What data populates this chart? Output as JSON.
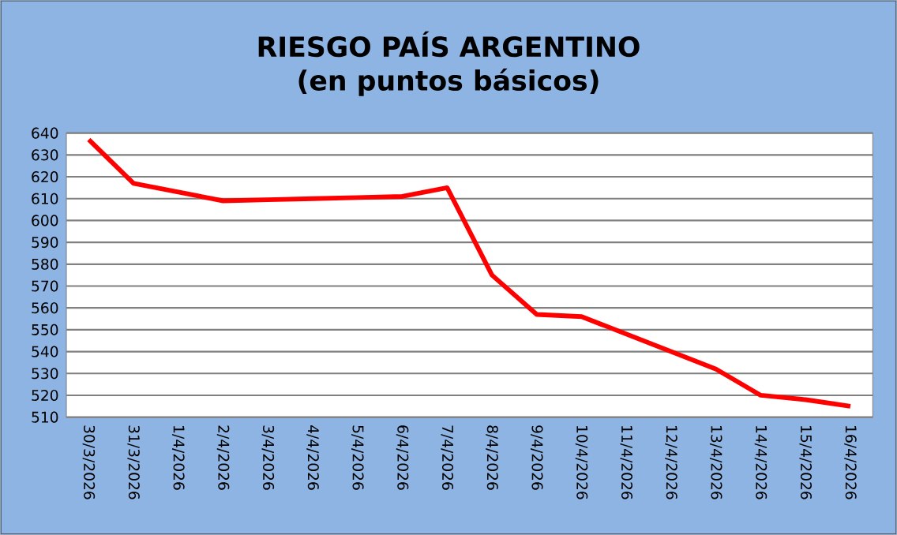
{
  "chart_data": {
    "type": "line",
    "title": "RIESGO PAÍS ARGENTINO",
    "subtitle": "(en puntos básicos)",
    "categories": [
      "30/3/2026",
      "31/3/2026",
      "1/4/2026",
      "2/4/2026",
      "3/4/2026",
      "4/4/2026",
      "5/4/2026",
      "6/4/2026",
      "7/4/2026",
      "8/4/2026",
      "9/4/2026",
      "10/4/2026",
      "11/4/2026",
      "12/4/2026",
      "13/4/2026",
      "14/4/2026",
      "15/4/2026",
      "16/4/2026"
    ],
    "series": [
      {
        "color": "#ff0000",
        "values": [
          637,
          617,
          613,
          609,
          609.5,
          610,
          610.5,
          611,
          615,
          575,
          557,
          556,
          548,
          540,
          532,
          520,
          518,
          515
        ]
      }
    ],
    "ylim": [
      510,
      640
    ],
    "yticks": [
      510,
      520,
      530,
      540,
      550,
      560,
      570,
      580,
      590,
      600,
      610,
      620,
      630,
      640
    ],
    "grid": "y",
    "legend": false,
    "marker": "none",
    "line_style": "solid"
  }
}
